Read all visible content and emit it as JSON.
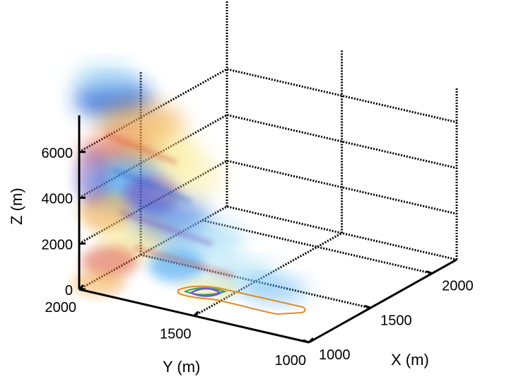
{
  "chart_data": {
    "type": "3d-volume",
    "axes": {
      "x": {
        "label": "X (m)",
        "ticks": [
          {
            "v": 1000,
            "t": "1000"
          },
          {
            "v": 1500,
            "t": "1500"
          },
          {
            "v": 2000,
            "t": "2000"
          }
        ],
        "range": [
          1000,
          2200
        ]
      },
      "y": {
        "label": "Y (m)",
        "ticks": [
          {
            "v": 2000,
            "t": "2000"
          },
          {
            "v": 1500,
            "t": "1500"
          },
          {
            "v": 1000,
            "t": "1000"
          }
        ],
        "range": [
          1000,
          2000
        ]
      },
      "z": {
        "label": "Z (m)",
        "ticks": [
          {
            "v": 0,
            "t": "0"
          },
          {
            "v": 2000,
            "t": "2000"
          },
          {
            "v": 4000,
            "t": "4000"
          },
          {
            "v": 6000,
            "t": "6000"
          }
        ],
        "range": [
          0,
          8000
        ]
      }
    },
    "grid": true,
    "box": "open-back",
    "colormap": [
      "#1f5fd6",
      "#3aa0f0",
      "#9ad9f5",
      "#f6e36a",
      "#f0a33a",
      "#d6452b",
      "#7a3fb0"
    ],
    "ground_contour": {
      "outer_color": "#e08a2a",
      "inner_color": "#6b5bd6",
      "green_color": "#3aa05a"
    }
  }
}
